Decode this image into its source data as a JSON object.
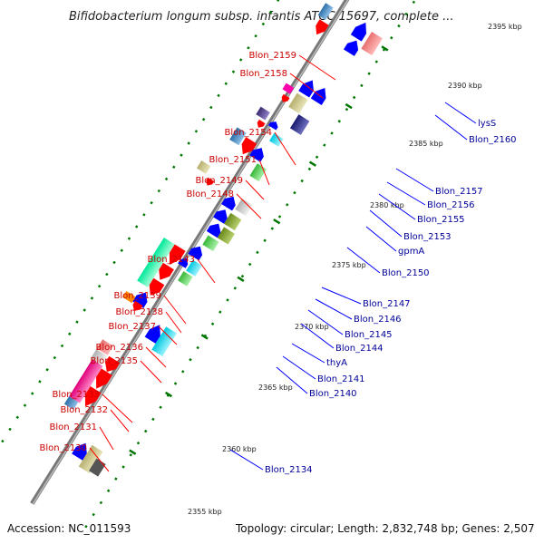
{
  "title": "Bifidobacterium longum subsp. infantis ATCC 15697, complete ...",
  "footer": {
    "accession": "Accession: NC_011593",
    "topology": "Topology: circular; Length: 2,832,748 bp; Genes: 2,507"
  },
  "colors": {
    "forward_gene": "#ff0000",
    "reverse_gene": "#0000ff",
    "left_label": "#cc0000",
    "right_label": "#000099",
    "backbone": "#888888",
    "tick": "#007700"
  },
  "kbp_marks": [
    {
      "id": "kbp-2395",
      "text": "2395 kbp"
    },
    {
      "id": "kbp-2390",
      "text": "2390 kbp"
    },
    {
      "id": "kbp-2385",
      "text": "2385 kbp"
    },
    {
      "id": "kbp-2380",
      "text": "2380 kbp"
    },
    {
      "id": "kbp-2375",
      "text": "2375 kbp"
    },
    {
      "id": "kbp-2370",
      "text": "2370 kbp"
    },
    {
      "id": "kbp-2365",
      "text": "2365 kbp"
    },
    {
      "id": "kbp-2360",
      "text": "2360 kbp"
    },
    {
      "id": "kbp-2355",
      "text": "2355 kbp"
    }
  ],
  "left_genes": [
    "Blon_2159",
    "Blon_2158",
    "Blon_2154",
    "Blon_2151",
    "Blon_2149",
    "Blon_2148",
    "Blon_2143",
    "Blon_2139",
    "Blon_2138",
    "Blon_2137",
    "Blon_2136",
    "Blon_2135",
    "Blon_2133",
    "Blon_2132",
    "Blon_2131",
    "Blon_2130"
  ],
  "right_genes": [
    "lysS",
    "Blon_2160",
    "Blon_2157",
    "Blon_2156",
    "Blon_2155",
    "Blon_2153",
    "gpmA",
    "Blon_2150",
    "Blon_2147",
    "Blon_2146",
    "Blon_2145",
    "Blon_2144",
    "thyA",
    "Blon_2141",
    "Blon_2140",
    "Blon_2134"
  ]
}
